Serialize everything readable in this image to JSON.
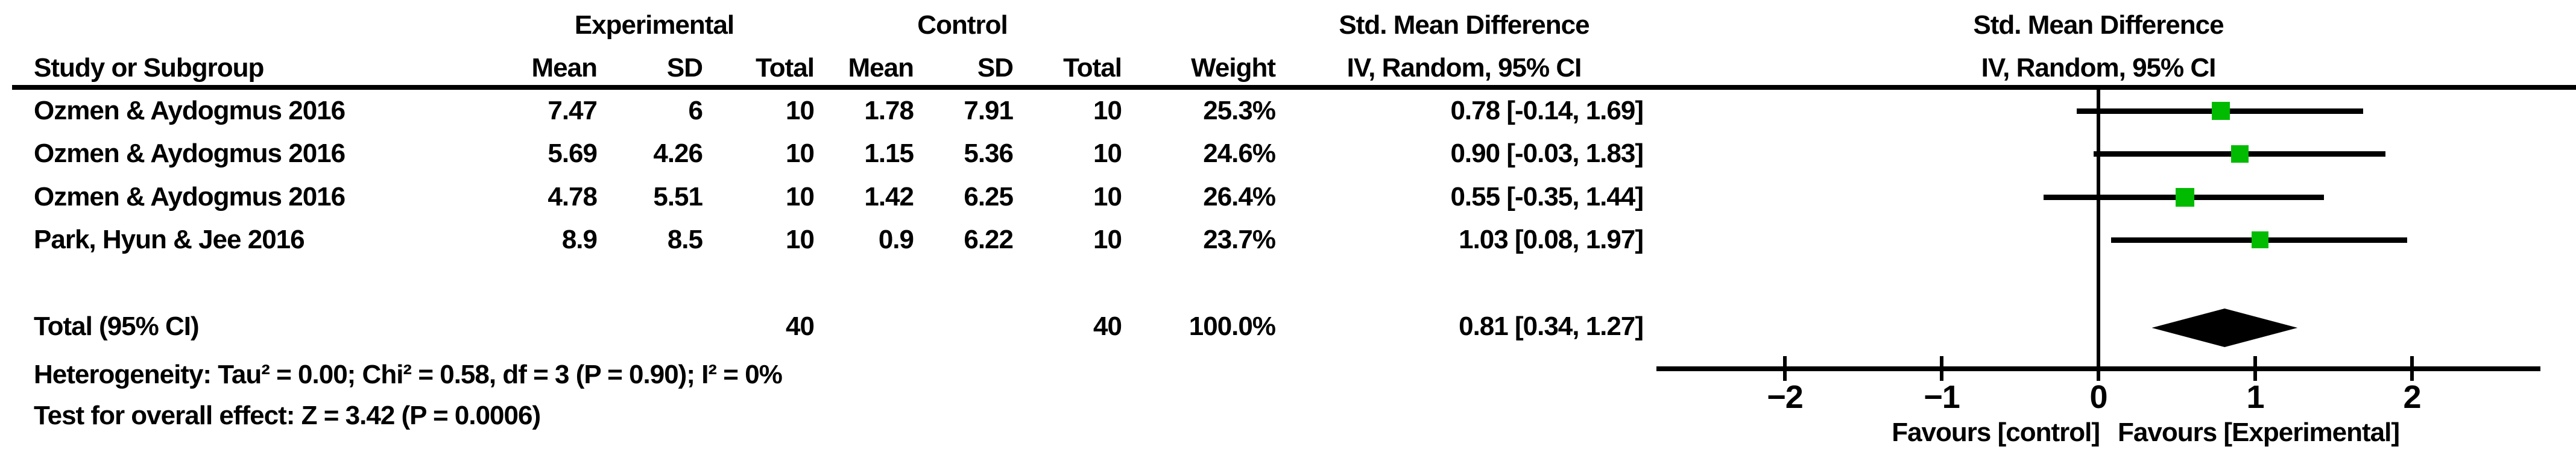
{
  "header": {
    "group_experimental": "Experimental",
    "group_control": "Control",
    "group_smd_table": "Std. Mean Difference",
    "group_smd_plot": "Std. Mean Difference",
    "col_study": "Study or Subgroup",
    "col_mean_exp": "Mean",
    "col_sd_exp": "SD",
    "col_total_exp": "Total",
    "col_mean_ctrl": "Mean",
    "col_sd_ctrl": "SD",
    "col_total_ctrl": "Total",
    "col_weight": "Weight",
    "col_ci_table": "IV, Random, 95% CI",
    "col_ci_plot": "IV, Random, 95% CI"
  },
  "table": {
    "rows": [
      {
        "study": "Ozmen & Aydogmus 2016",
        "exp_mean": "7.47",
        "exp_sd": "6",
        "exp_total": "10",
        "ctrl_mean": "1.78",
        "ctrl_sd": "7.91",
        "ctrl_total": "10",
        "weight": "25.3%",
        "ci_text": "0.78 [-0.14, 1.69]"
      },
      {
        "study": "Ozmen & Aydogmus 2016",
        "exp_mean": "5.69",
        "exp_sd": "4.26",
        "exp_total": "10",
        "ctrl_mean": "1.15",
        "ctrl_sd": "5.36",
        "ctrl_total": "10",
        "weight": "24.6%",
        "ci_text": "0.90 [-0.03, 1.83]"
      },
      {
        "study": "Ozmen & Aydogmus 2016",
        "exp_mean": "4.78",
        "exp_sd": "5.51",
        "exp_total": "10",
        "ctrl_mean": "1.42",
        "ctrl_sd": "6.25",
        "ctrl_total": "10",
        "weight": "26.4%",
        "ci_text": "0.55 [-0.35, 1.44]"
      },
      {
        "study": "Park, Hyun & Jee 2016",
        "exp_mean": "8.9",
        "exp_sd": "8.5",
        "exp_total": "10",
        "ctrl_mean": "0.9",
        "ctrl_sd": "6.22",
        "ctrl_total": "10",
        "weight": "23.7%",
        "ci_text": "1.03 [0.08, 1.97]"
      }
    ],
    "total": {
      "label": "Total (95% CI)",
      "exp_total": "40",
      "ctrl_total": "40",
      "weight": "100.0%",
      "ci_text": "0.81 [0.34, 1.27]"
    },
    "heterogeneity": "Heterogeneity: Tau² = 0.00; Chi² = 0.58, df = 3 (P = 0.90); I² = 0%",
    "overall_effect": "Test for overall effect: Z = 3.42 (P = 0.0006)"
  },
  "chart_data": {
    "type": "forest",
    "title": "Std. Mean Difference, IV, Random, 95% CI",
    "x_axis": {
      "ticks": [
        -2,
        -1,
        0,
        1,
        2
      ],
      "tick_labels": [
        "−2",
        "−1",
        "0",
        "1",
        "2"
      ],
      "xlim": [
        -2.82,
        2.82
      ],
      "zero_line": 0
    },
    "favours_left": "Favours [control]",
    "favours_right": "Favours [Experimental]",
    "marker_color": "#00bb00",
    "line_color": "#000000",
    "diamond_color": "#000000",
    "studies": [
      {
        "name": "Ozmen & Aydogmus 2016",
        "smd": 0.78,
        "ci_low": -0.14,
        "ci_high": 1.69,
        "weight_pct": 25.3
      },
      {
        "name": "Ozmen & Aydogmus 2016",
        "smd": 0.9,
        "ci_low": -0.03,
        "ci_high": 1.83,
        "weight_pct": 24.6
      },
      {
        "name": "Ozmen & Aydogmus 2016",
        "smd": 0.55,
        "ci_low": -0.35,
        "ci_high": 1.44,
        "weight_pct": 26.4
      },
      {
        "name": "Park, Hyun & Jee 2016",
        "smd": 1.03,
        "ci_low": 0.08,
        "ci_high": 1.97,
        "weight_pct": 23.7
      }
    ],
    "total": {
      "smd": 0.81,
      "ci_low": 0.34,
      "ci_high": 1.27,
      "weight_pct": 100.0
    }
  }
}
